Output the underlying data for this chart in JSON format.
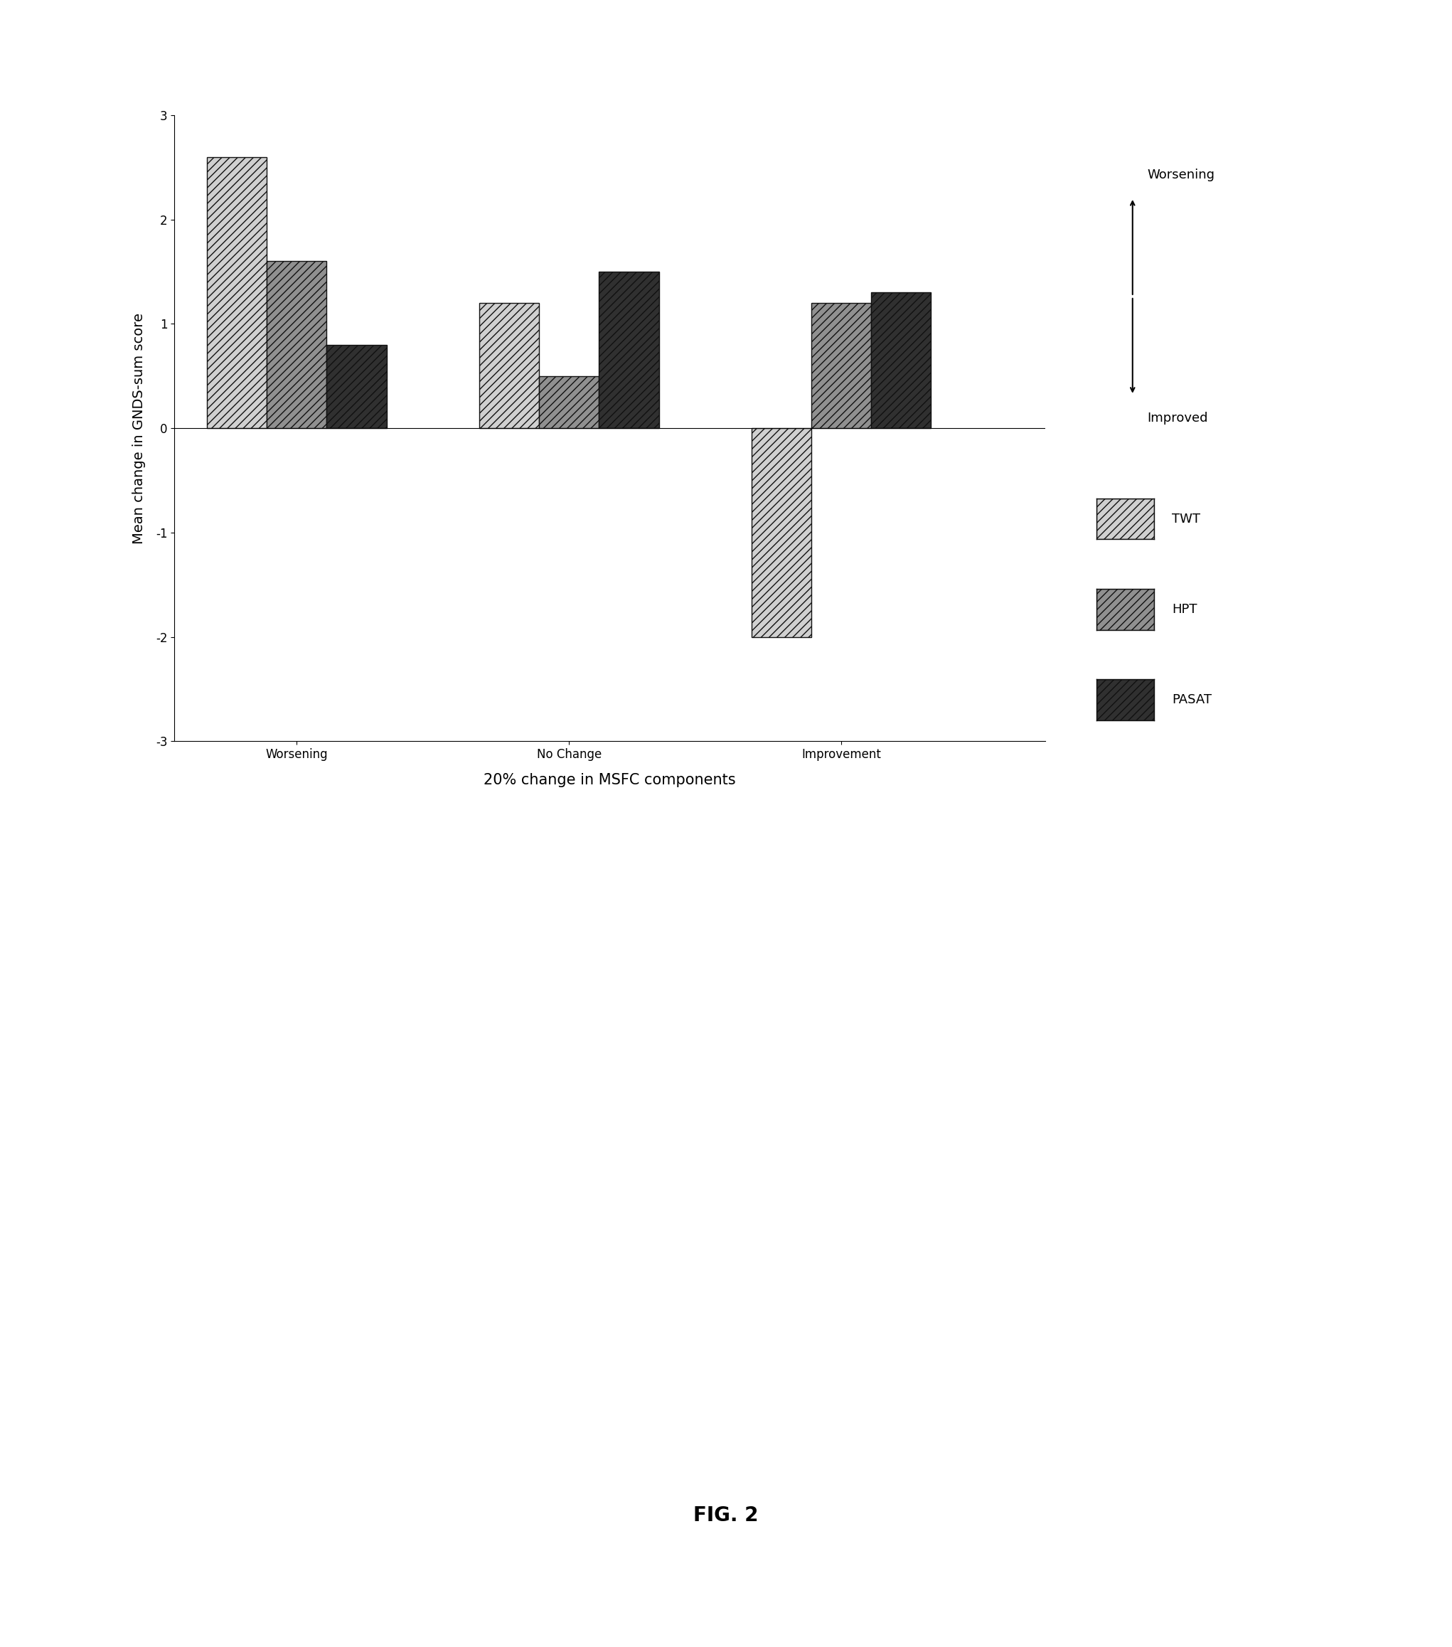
{
  "categories": [
    "Worsening",
    "No Change",
    "Improvement"
  ],
  "series": {
    "TWT": [
      2.6,
      1.2,
      -2.0
    ],
    "HPT": [
      1.6,
      0.5,
      1.2
    ],
    "PASAT": [
      0.8,
      1.5,
      1.3
    ]
  },
  "series_order": [
    "TWT",
    "HPT",
    "PASAT"
  ],
  "bar_hatches": [
    "///",
    "///",
    "///"
  ],
  "bar_facecolors": [
    "#d0d0d0",
    "#909090",
    "#303030"
  ],
  "bar_edgecolors": [
    "#111111",
    "#111111",
    "#111111"
  ],
  "ylabel": "Mean change in GNDS-sum score",
  "xlabel": "20% change in MSFC components",
  "ylim": [
    -3,
    3
  ],
  "yticks": [
    -3,
    -2,
    -1,
    0,
    1,
    2,
    3
  ],
  "figure_caption": "FIG. 2",
  "worsening_label": "Worsening",
  "improved_label": "Improved",
  "legend_labels": [
    "TWT",
    "HPT",
    "PASAT"
  ],
  "bar_width": 0.22,
  "group_positions": [
    1,
    2,
    3
  ],
  "background_color": "#ffffff",
  "axis_fontsize": 14,
  "tick_fontsize": 12,
  "caption_fontsize": 20,
  "legend_fontsize": 13,
  "annotation_fontsize": 13
}
